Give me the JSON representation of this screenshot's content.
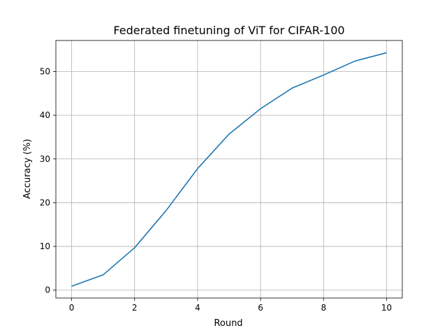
{
  "chart_data": {
    "type": "line",
    "title": "Federated finetuning of ViT for CIFAR-100",
    "xlabel": "Round",
    "ylabel": "Accuracy (%)",
    "xlim": [
      -0.5,
      10.5
    ],
    "ylim": [
      -1.8,
      57.1
    ],
    "xticks": [
      0,
      2,
      4,
      6,
      8,
      10
    ],
    "yticks": [
      0,
      10,
      20,
      30,
      40,
      50
    ],
    "grid": true,
    "series": [
      {
        "color": "#1f77b4",
        "x": [
          0,
          1,
          2,
          3,
          4,
          5,
          6,
          7,
          8,
          9,
          10
        ],
        "values": [
          0.9,
          3.5,
          9.7,
          18.2,
          27.8,
          35.7,
          41.5,
          46.2,
          49.2,
          52.4,
          54.3
        ]
      }
    ]
  }
}
